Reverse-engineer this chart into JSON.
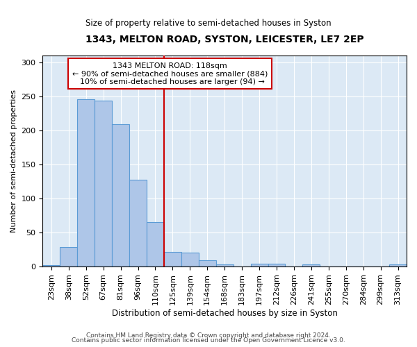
{
  "title": "1343, MELTON ROAD, SYSTON, LEICESTER, LE7 2EP",
  "subtitle": "Size of property relative to semi-detached houses in Syston",
  "xlabel": "Distribution of semi-detached houses by size in Syston",
  "ylabel": "Number of semi-detached properties",
  "bar_labels": [
    "23sqm",
    "38sqm",
    "52sqm",
    "67sqm",
    "81sqm",
    "96sqm",
    "110sqm",
    "125sqm",
    "139sqm",
    "154sqm",
    "168sqm",
    "183sqm",
    "197sqm",
    "212sqm",
    "226sqm",
    "241sqm",
    "255sqm",
    "270sqm",
    "284sqm",
    "299sqm",
    "313sqm"
  ],
  "bar_values": [
    2,
    29,
    246,
    244,
    209,
    128,
    65,
    22,
    21,
    9,
    3,
    0,
    4,
    4,
    0,
    3,
    0,
    0,
    0,
    0,
    3
  ],
  "bar_color": "#aec6e8",
  "bar_edge_color": "#5b9bd5",
  "property_label": "1343 MELTON ROAD: 118sqm",
  "pct_smaller": 90,
  "n_smaller": 884,
  "pct_larger": 10,
  "n_larger": 94,
  "vline_color": "#cc0000",
  "annotation_box_color": "#cc0000",
  "ylim": [
    0,
    310
  ],
  "yticks": [
    0,
    50,
    100,
    150,
    200,
    250,
    300
  ],
  "footer1": "Contains HM Land Registry data © Crown copyright and database right 2024.",
  "footer2": "Contains public sector information licensed under the Open Government Licence v3.0.",
  "fig_bg_color": "#ffffff",
  "plot_bg_color": "#dce9f5"
}
